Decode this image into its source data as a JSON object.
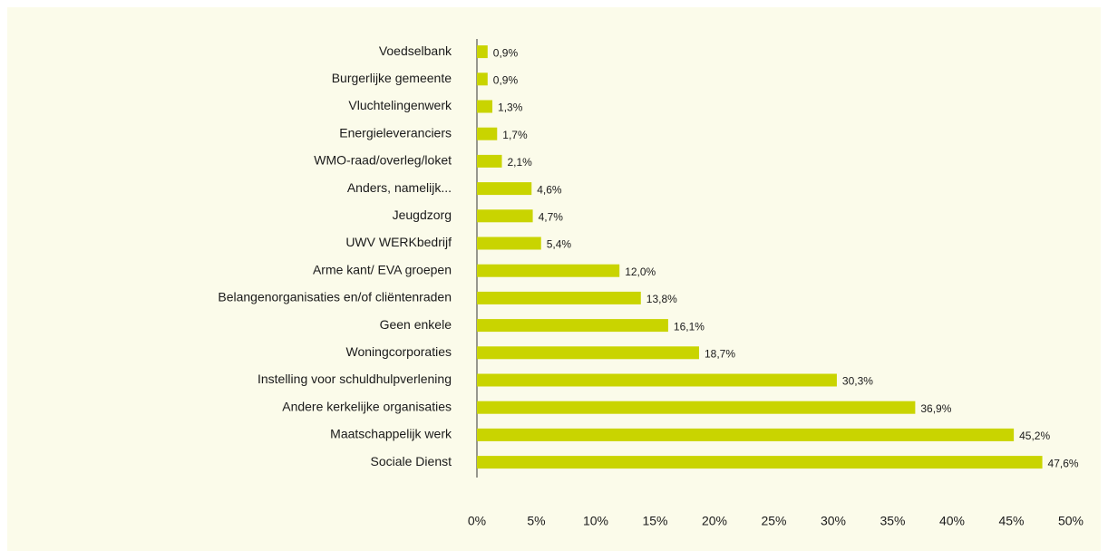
{
  "chart_data": {
    "type": "hbar",
    "categories": [
      "Voedselbank",
      "Burgerlijke gemeente",
      "Vluchtelingenwerk",
      "Energieleveranciers",
      "WMO-raad/overleg/loket",
      "Anders, namelijk...",
      "Jeugdzorg",
      "UWV WERKbedrijf",
      "Arme kant/ EVA groepen",
      "Belangenorganisaties en/of cliëntenraden",
      "Geen enkele",
      "Woningcorporaties",
      "Instelling voor schuldhulpverlening",
      "Andere kerkelijke organisaties",
      "Maatschappelijk werk",
      "Sociale Dienst"
    ],
    "values": [
      0.9,
      0.9,
      1.3,
      1.7,
      2.1,
      4.6,
      4.7,
      5.4,
      12.0,
      13.8,
      16.1,
      18.7,
      30.3,
      36.9,
      45.2,
      47.6
    ],
    "value_labels": [
      "0,9%",
      "0,9%",
      "1,3%",
      "1,7%",
      "2,1%",
      "4,6%",
      "4,7%",
      "5,4%",
      "12,0%",
      "13,8%",
      "16,1%",
      "18,7%",
      "30,3%",
      "36,9%",
      "45,2%",
      "47,6%"
    ],
    "color": "#c9d400",
    "xlim": [
      0,
      50
    ],
    "xticks": [
      {
        "value": 0,
        "label": "0%"
      },
      {
        "value": 5,
        "label": "5%"
      },
      {
        "value": 10,
        "label": "10%"
      },
      {
        "value": 15,
        "label": "15%"
      },
      {
        "value": 20,
        "label": "20%"
      },
      {
        "value": 25,
        "label": "25%"
      },
      {
        "value": 30,
        "label": "30%"
      },
      {
        "value": 35,
        "label": "35%"
      },
      {
        "value": 40,
        "label": "40%"
      },
      {
        "value": 45,
        "label": "45%"
      },
      {
        "value": 50,
        "label": "50%"
      }
    ]
  }
}
